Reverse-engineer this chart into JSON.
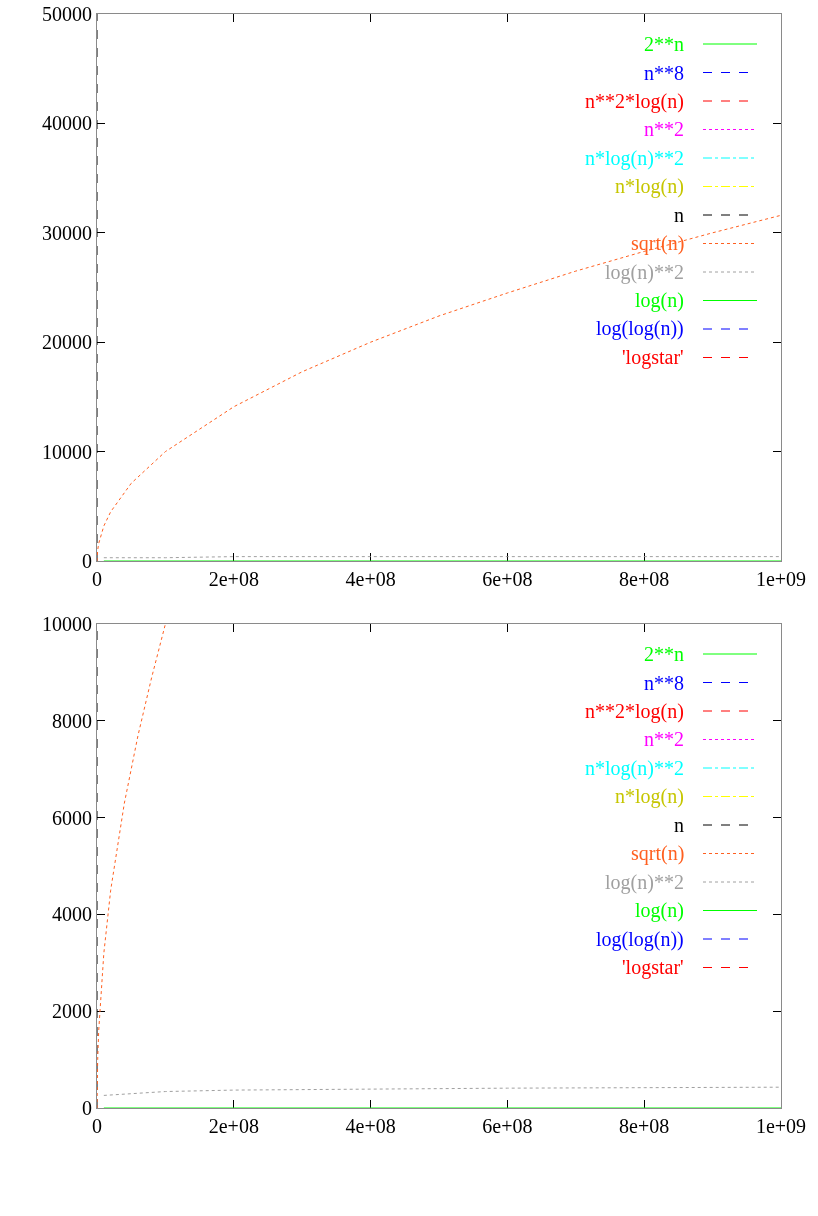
{
  "chart_data": [
    {
      "type": "line",
      "xlim": [
        0,
        1000000000
      ],
      "xticks": [
        0,
        {
          "value": 200000000,
          "label": "2e+08"
        },
        {
          "value": 400000000,
          "label": "4e+08"
        },
        {
          "value": 600000000,
          "label": "6e+08"
        },
        {
          "value": 800000000,
          "label": "8e+08"
        },
        {
          "value": 1000000000,
          "label": "1e+09"
        }
      ],
      "ylim": [
        0,
        50000
      ],
      "yticks": [
        0,
        10000,
        20000,
        30000,
        40000,
        50000
      ],
      "legend": "top right",
      "series": [
        {
          "name": "2**n",
          "color": "#00ff00",
          "line_style": "solid"
        },
        {
          "name": "n**8",
          "color": "#0000ff",
          "line_style": "dashed"
        },
        {
          "name": "n**2*log(n)",
          "color": "#ff0000",
          "line_style": "dashed"
        },
        {
          "name": "n**2",
          "color": "#ff00ff",
          "line_style": "dotted"
        },
        {
          "name": "n*log(n)**2",
          "color": "#00ffff",
          "line_style": "dashdot"
        },
        {
          "name": "n*log(n)",
          "color": "#ffff00",
          "line_style": "dashdot"
        },
        {
          "name": "n",
          "color": "#000000",
          "line_style": "dashed",
          "x": [
            0,
            0
          ],
          "values": [
            0,
            50000
          ]
        },
        {
          "name": "sqrt(n)",
          "color": "#ff6020",
          "line_style": "dotted",
          "x": [
            0,
            1000000,
            2500000,
            10000000,
            20000000,
            50000000,
            100000000,
            200000000,
            300000000,
            400000000,
            500000000,
            600000000,
            700000000,
            800000000,
            900000000,
            1000000000
          ],
          "values": [
            0,
            1000,
            1600,
            3200,
            4500,
            7100,
            10000,
            14100,
            17300,
            20000,
            22400,
            24500,
            26500,
            28300,
            30000,
            31600
          ]
        },
        {
          "name": "log(n)**2",
          "color": "#a0a0a0",
          "line_style": "dotted",
          "x": [
            10000000,
            100000000,
            200000000,
            400000000,
            600000000,
            800000000,
            1000000000
          ],
          "values": [
            300,
            300,
            400,
            400,
            400,
            400,
            400
          ]
        },
        {
          "name": "log(n)",
          "color": "#00ff00",
          "line_style": "solid",
          "x": [
            10000000,
            1000000000
          ],
          "values": [
            0,
            0
          ]
        },
        {
          "name": "log(log(n))",
          "color": "#0000ff",
          "line_style": "dashed"
        },
        {
          "name": "'logstar'",
          "color": "#ff0000",
          "line_style": "dashed"
        }
      ]
    },
    {
      "type": "line",
      "xlim": [
        0,
        1000000000
      ],
      "xticks": [
        0,
        {
          "value": 200000000,
          "label": "2e+08"
        },
        {
          "value": 400000000,
          "label": "4e+08"
        },
        {
          "value": 600000000,
          "label": "6e+08"
        },
        {
          "value": 800000000,
          "label": "8e+08"
        },
        {
          "value": 1000000000,
          "label": "1e+09"
        }
      ],
      "ylim": [
        0,
        10000
      ],
      "yticks": [
        0,
        2000,
        4000,
        6000,
        8000,
        10000
      ],
      "legend": "top right",
      "series": [
        {
          "name": "2**n",
          "color": "#00ff00",
          "line_style": "solid"
        },
        {
          "name": "n**8",
          "color": "#0000ff",
          "line_style": "dashed"
        },
        {
          "name": "n**2*log(n)",
          "color": "#ff0000",
          "line_style": "dashed"
        },
        {
          "name": "n**2",
          "color": "#ff00ff",
          "line_style": "dotted"
        },
        {
          "name": "n*log(n)**2",
          "color": "#00ffff",
          "line_style": "dashdot"
        },
        {
          "name": "n*log(n)",
          "color": "#ffff00",
          "line_style": "dashdot"
        },
        {
          "name": "n",
          "color": "#000000",
          "line_style": "dashed",
          "x": [
            0,
            0
          ],
          "values": [
            0,
            10000
          ]
        },
        {
          "name": "sqrt(n)",
          "color": "#ff6020",
          "line_style": "dotted",
          "x": [
            0,
            1000000,
            2500000,
            10000000,
            20000000,
            40000000,
            60000000,
            80000000,
            100000000
          ],
          "values": [
            0,
            1000,
            1600,
            3200,
            4500,
            6300,
            7700,
            8900,
            10000
          ]
        },
        {
          "name": "log(n)**2",
          "color": "#a0a0a0",
          "line_style": "dotted",
          "x": [
            10000000,
            100000000,
            200000000,
            400000000,
            600000000,
            800000000,
            1000000000
          ],
          "values": [
            260,
            340,
            370,
            390,
            410,
            420,
            430
          ]
        },
        {
          "name": "log(n)",
          "color": "#00ff00",
          "line_style": "solid",
          "x": [
            10000000,
            1000000000
          ],
          "values": [
            0,
            0
          ]
        },
        {
          "name": "log(log(n))",
          "color": "#0000ff",
          "line_style": "dashed"
        },
        {
          "name": "'logstar'",
          "color": "#ff0000",
          "line_style": "dashed"
        }
      ]
    }
  ]
}
